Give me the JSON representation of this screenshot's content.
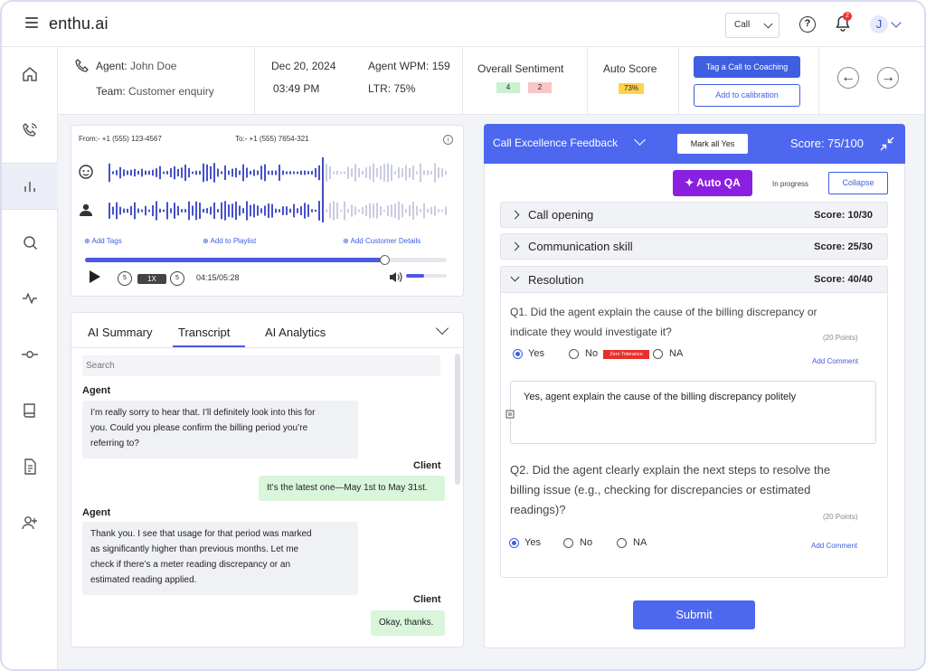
{
  "app": {
    "brand": "enthu.ai"
  },
  "topbar": {
    "call_select": "Call",
    "notification_count": "2",
    "avatar_letter": "J"
  },
  "info": {
    "agent_label": "Agent:",
    "agent_name": "John Doe",
    "team_label": "Team:",
    "team_name": "Customer enquiry",
    "date": "Dec 20, 2024",
    "time": "03:49 PM",
    "wpm": "Agent WPM: 159",
    "ltr": "LTR: 75%",
    "sentiment_label": "Overall Sentiment",
    "sentiment_pos": "4",
    "sentiment_neg": "2",
    "autoscore_label": "Auto Score",
    "autoscore_value": "73%",
    "tag_coaching": "Tag a Call to Coaching",
    "add_calibration": "Add to calibration",
    "colors": {
      "accent": "#3f5fe0",
      "positive": "#c9f0cf",
      "negative": "#f7c6c6",
      "autoscore": "#ffd24d"
    }
  },
  "player": {
    "from": "From:- +1 (555) 123-4567",
    "to": "To:- +1 (555) 7654-321",
    "add_tags": "Add Tags",
    "add_playlist": "Add to Playlist",
    "add_customer": "Add Customer Details",
    "speed": "1X",
    "time": "04:15/05:28",
    "progress": 0.83,
    "volume": 0.45
  },
  "tabs": {
    "ai_summary": "AI Summary",
    "transcript": "Transcript",
    "ai_analytics": "AI Analytics"
  },
  "transcript": {
    "search_placeholder": "Search",
    "messages": [
      {
        "speaker": "Agent",
        "text_lines": [
          "I’m really sorry to hear that. I’ll definitely look into this for",
          "you. Could you please confirm the billing period you’re",
          "referring to?"
        ]
      },
      {
        "speaker": "Client",
        "text": "It’s the latest one—May 1st to May 31st."
      },
      {
        "speaker": "Agent",
        "text_lines": [
          "Thank you. I see that usage for that period was marked",
          "as significantly higher than previous months. Let me",
          "check if there’s a meter reading discrepancy or an",
          "estimated reading applied."
        ]
      },
      {
        "speaker": "Client",
        "text": "Okay, thanks."
      }
    ]
  },
  "feedback": {
    "title": "Call Excellence Feedback",
    "mark_all": "Mark all Yes",
    "score": "Score: 75/100",
    "auto_qa": "Auto QA",
    "in_progress": "In progress",
    "collapse": "Collapse",
    "sections": [
      {
        "title": "Call opening",
        "score": "Score: 10/30"
      },
      {
        "title": "Communication skill",
        "score": "Score: 25/30"
      },
      {
        "title": "Resolution",
        "score": "Score: 40/40"
      }
    ],
    "q1": {
      "lines": [
        "Q1. Did the agent explain the cause of the billing discrepancy or",
        "indicate they would investigate it?"
      ],
      "points": "(20 Points)",
      "yes": "Yes",
      "no": "No",
      "na": "NA",
      "zero_tolerance": "Zero Tolerance",
      "add_comment": "Add Comment",
      "comment": "Yes, agent explain the cause of the billing discrepancy politely"
    },
    "q2": {
      "lines": [
        "Q2. Did the agent clearly explain the next steps to resolve the",
        "billing issue (e.g., checking for discrepancies or estimated",
        "readings)?"
      ],
      "points": "(20 Points)",
      "yes": "Yes",
      "no": "No",
      "na": "NA",
      "add_comment": "Add Comment"
    },
    "submit": "Submit"
  }
}
